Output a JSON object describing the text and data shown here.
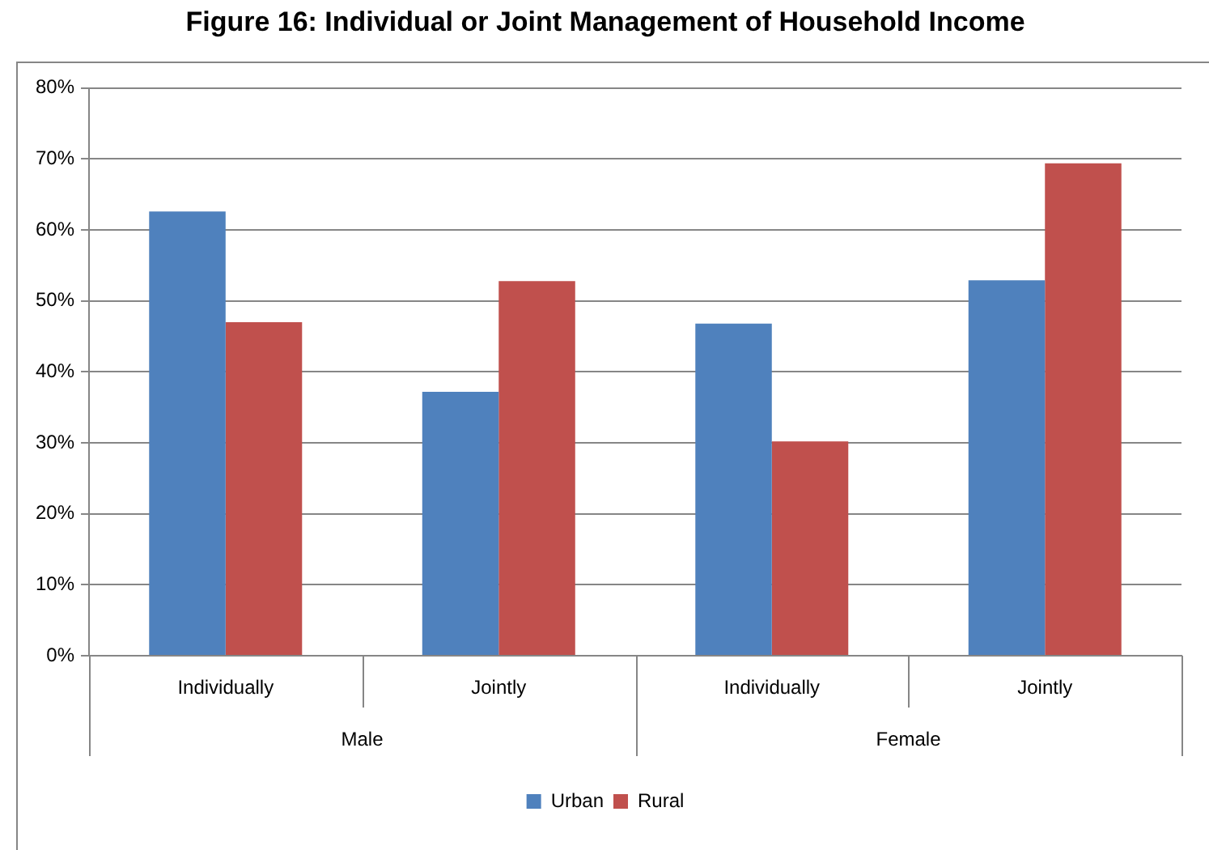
{
  "chart_data": {
    "type": "bar",
    "title": "Figure 16: Individual or Joint Management of Household Income",
    "categories": [
      "Individually",
      "Jointly",
      "Individually",
      "Jointly"
    ],
    "annotations": [
      "Male",
      "Female"
    ],
    "series": [
      {
        "name": "Urban",
        "color": "#4f81bd",
        "values": [
          62.6,
          37.2,
          46.8,
          52.9
        ]
      },
      {
        "name": "Rural",
        "color": "#c0504d",
        "values": [
          47.0,
          52.8,
          30.2,
          69.4
        ]
      }
    ],
    "ylim": [
      0,
      80
    ],
    "yticks": [
      {
        "value": 0,
        "label": "0%"
      },
      {
        "value": 10,
        "label": "10%"
      },
      {
        "value": 20,
        "label": "20%"
      },
      {
        "value": 30,
        "label": "30%"
      },
      {
        "value": 40,
        "label": "40%"
      },
      {
        "value": 50,
        "label": "50%"
      },
      {
        "value": 60,
        "label": "60%"
      },
      {
        "value": 70,
        "label": "70%"
      },
      {
        "value": 80,
        "label": "80%"
      }
    ],
    "grid": "y",
    "legend": "bottom"
  }
}
